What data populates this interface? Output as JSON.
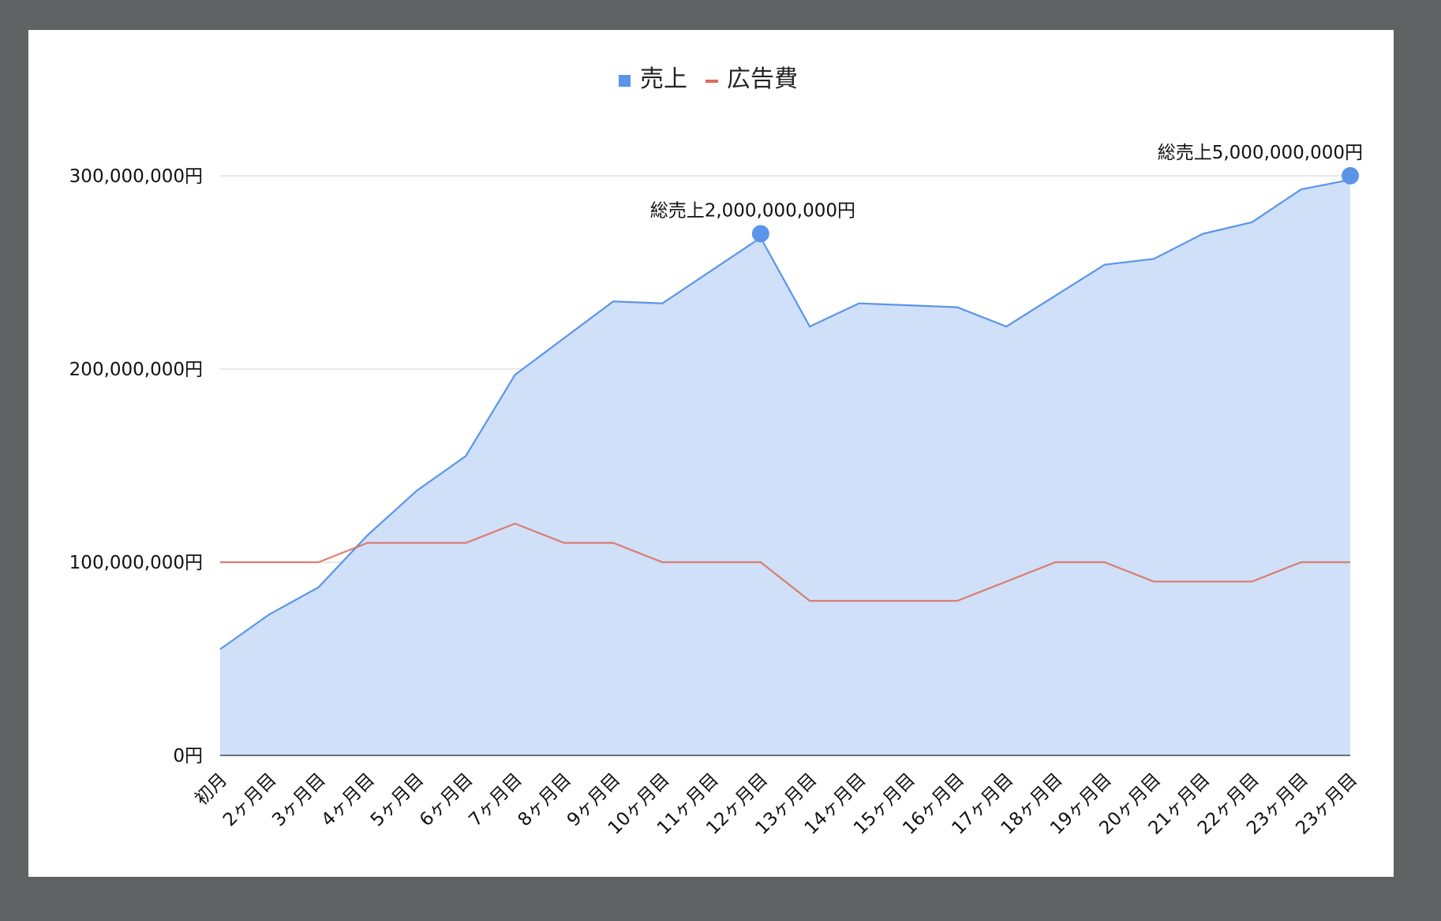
{
  "chart_data": {
    "type": "area",
    "legend_position": "top",
    "grid": true,
    "categories": [
      "初月",
      "2ヶ月目",
      "3ヶ月目",
      "4ヶ月目",
      "5ヶ月目",
      "6ヶ月目",
      "7ヶ月目",
      "8ヶ月目",
      "9ヶ月目",
      "10ヶ月目",
      "11ヶ月目",
      "12ヶ月目",
      "13ヶ月目",
      "14ヶ月目",
      "15ヶ月目",
      "16ヶ月目",
      "17ヶ月目",
      "18ヶ月目",
      "19ヶ月目",
      "20ヶ月目",
      "21ヶ月目",
      "22ヶ月目",
      "23ヶ月目",
      "23ヶ月目"
    ],
    "ylim": [
      0,
      300000000
    ],
    "yticks": [
      0,
      100000000,
      200000000,
      300000000
    ],
    "ytick_labels": [
      "0円",
      "100,000,000円",
      "200,000,000円",
      "300,000,000円"
    ],
    "series": [
      {
        "name": "売上",
        "style": "area",
        "color": "#5b95e9",
        "fill": "#cfe0f8",
        "values": [
          55000000,
          73000000,
          87000000,
          114000000,
          137000000,
          155000000,
          197000000,
          216000000,
          235000000,
          234000000,
          251000000,
          268000000,
          222000000,
          234000000,
          233000000,
          232000000,
          222000000,
          238000000,
          254000000,
          257000000,
          270000000,
          276000000,
          293000000,
          298000000
        ]
      },
      {
        "name": "広告費",
        "style": "line",
        "color": "#dd6a59",
        "values": [
          100000000,
          100000000,
          100000000,
          110000000,
          110000000,
          110000000,
          120000000,
          110000000,
          110000000,
          100000000,
          100000000,
          100000000,
          80000000,
          80000000,
          80000000,
          80000000,
          90000000,
          100000000,
          100000000,
          90000000,
          90000000,
          90000000,
          100000000,
          100000000
        ]
      }
    ],
    "annotations": [
      {
        "series": 0,
        "index": 11,
        "text": "総売上2,000,000,000円"
      },
      {
        "series": 0,
        "index": 23,
        "text": "総売上5,000,000,000円"
      }
    ]
  }
}
